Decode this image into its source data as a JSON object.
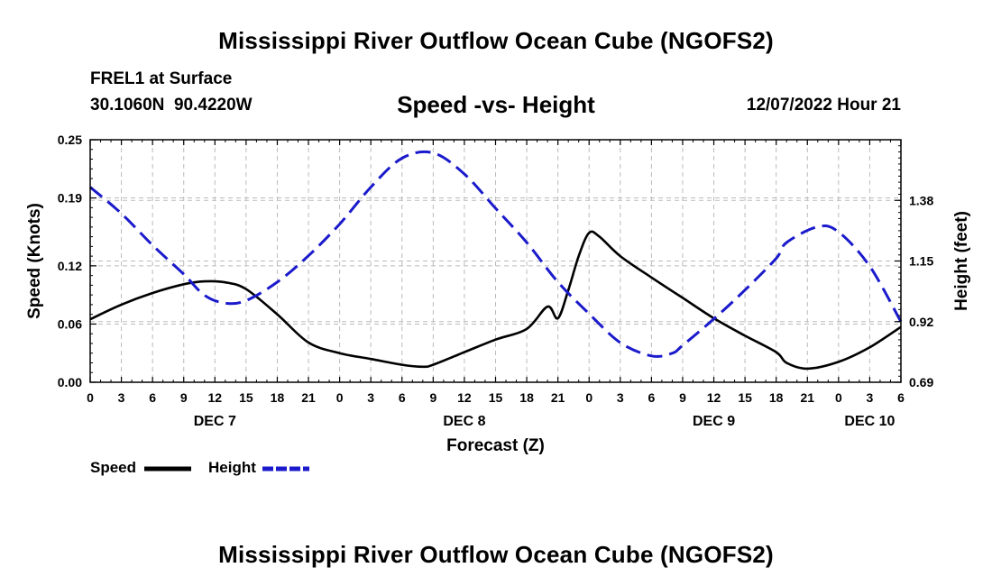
{
  "page": {
    "title": "Mississippi River Outflow Ocean Cube (NGOFS2)",
    "bottom_title": "Mississippi River Outflow Ocean Cube (NGOFS2)",
    "station": "FREL1 at Surface",
    "coords": "30.1060N  90.4220W",
    "forecast_time": "12/07/2022 Hour 21"
  },
  "chart_data": {
    "type": "line",
    "title": "Speed -vs- Height",
    "xlabel": "Forecast (Z)",
    "ylabel": "Speed (Knots)",
    "y2label": "Height (feet)",
    "x_range_hours": [
      0,
      78
    ],
    "ylim": [
      0,
      0.25
    ],
    "y2lim": [
      0.69,
      1.61
    ],
    "yticks": [
      0.0,
      0.06,
      0.12,
      0.19,
      0.25
    ],
    "ytick_labels": [
      "0.00",
      "0.06",
      "0.12",
      "0.19",
      "0.25"
    ],
    "y2ticks": [
      0.69,
      0.92,
      1.15,
      1.38
    ],
    "y2tick_labels": [
      "0.69",
      "0.92",
      "1.15",
      "1.38"
    ],
    "xtick_labels": [
      "0",
      "3",
      "6",
      "9",
      "12",
      "15",
      "18",
      "21",
      "0",
      "3",
      "6",
      "9",
      "12",
      "15",
      "18",
      "21",
      "0",
      "3",
      "6",
      "9",
      "12",
      "15",
      "18",
      "21",
      "0",
      "3",
      "6"
    ],
    "day_labels": [
      {
        "label": "DEC 7",
        "hour": 12
      },
      {
        "label": "DEC 8",
        "hour": 36
      },
      {
        "label": "DEC 9",
        "hour": 60
      },
      {
        "label": "DEC 10",
        "hour": 75
      }
    ],
    "grid": true,
    "series": [
      {
        "name": "Speed",
        "axis": "left",
        "color": "#000000",
        "dash": "solid",
        "x": [
          0,
          3,
          6,
          9,
          11,
          13,
          15,
          18,
          21,
          24,
          27,
          30,
          32,
          33,
          36,
          39,
          42,
          45,
          44,
          46,
          47,
          48,
          49,
          51,
          54,
          57,
          60,
          63,
          66,
          67,
          69,
          72,
          75,
          78
        ],
        "y": [
          0.065,
          0.08,
          0.092,
          0.101,
          0.104,
          0.103,
          0.096,
          0.07,
          0.041,
          0.03,
          0.024,
          0.018,
          0.016,
          0.018,
          0.031,
          0.044,
          0.055,
          0.066,
          0.078,
          0.095,
          0.13,
          0.154,
          0.15,
          0.13,
          0.108,
          0.087,
          0.066,
          0.048,
          0.031,
          0.02,
          0.014,
          0.021,
          0.036,
          0.057
        ]
      },
      {
        "name": "Height",
        "axis": "right",
        "color": "#1a1acc",
        "dash": "dashed",
        "x": [
          0,
          3,
          6,
          9,
          11,
          13,
          15,
          18,
          21,
          24,
          27,
          30,
          33,
          36,
          39,
          42,
          45,
          48,
          51,
          54,
          56,
          57,
          60,
          63,
          66,
          67,
          70,
          72,
          75,
          78
        ],
        "y": [
          1.43,
          1.33,
          1.21,
          1.1,
          1.02,
          0.99,
          1.0,
          1.07,
          1.17,
          1.29,
          1.43,
          1.54,
          1.56,
          1.48,
          1.35,
          1.22,
          1.07,
          0.95,
          0.84,
          0.79,
          0.8,
          0.83,
          0.93,
          1.04,
          1.16,
          1.22,
          1.28,
          1.26,
          1.13,
          0.92
        ]
      }
    ]
  }
}
